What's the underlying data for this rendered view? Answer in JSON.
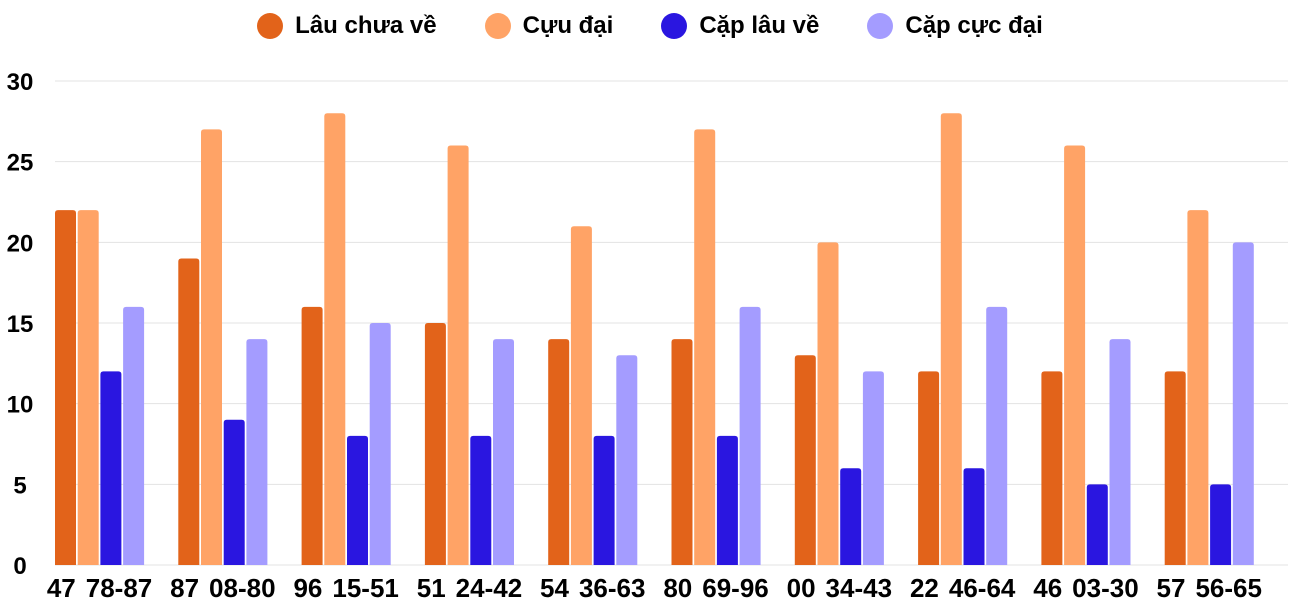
{
  "chart_data": {
    "type": "bar",
    "categories": [
      "47",
      "87",
      "96",
      "51",
      "54",
      "80",
      "00",
      "22",
      "46",
      "57"
    ],
    "pair_labels": [
      "78-87",
      "08-80",
      "15-51",
      "24-42",
      "36-63",
      "69-96",
      "34-43",
      "46-64",
      "03-30",
      "56-65"
    ],
    "series": [
      {
        "name": "Lâu chưa về",
        "color": "#E2631A",
        "values": [
          22,
          19,
          16,
          15,
          14,
          14,
          13,
          12,
          12,
          12
        ]
      },
      {
        "name": "Cựu đại",
        "color": "#FFA366",
        "values": [
          22,
          27,
          28,
          26,
          21,
          27,
          20,
          28,
          26,
          22
        ]
      },
      {
        "name": "Cặp lâu về",
        "color": "#2A16E0",
        "values": [
          12,
          9,
          8,
          8,
          8,
          8,
          6,
          6,
          5,
          5
        ]
      },
      {
        "name": "Cặp cực đại",
        "color": "#A49CFF",
        "values": [
          16,
          14,
          15,
          14,
          13,
          16,
          12,
          16,
          14,
          20
        ]
      }
    ],
    "ylim": [
      0,
      30
    ],
    "yticks": [
      "0",
      "5",
      "10",
      "15",
      "20",
      "25",
      "30"
    ],
    "grid": true,
    "legend_position": "top-center"
  }
}
